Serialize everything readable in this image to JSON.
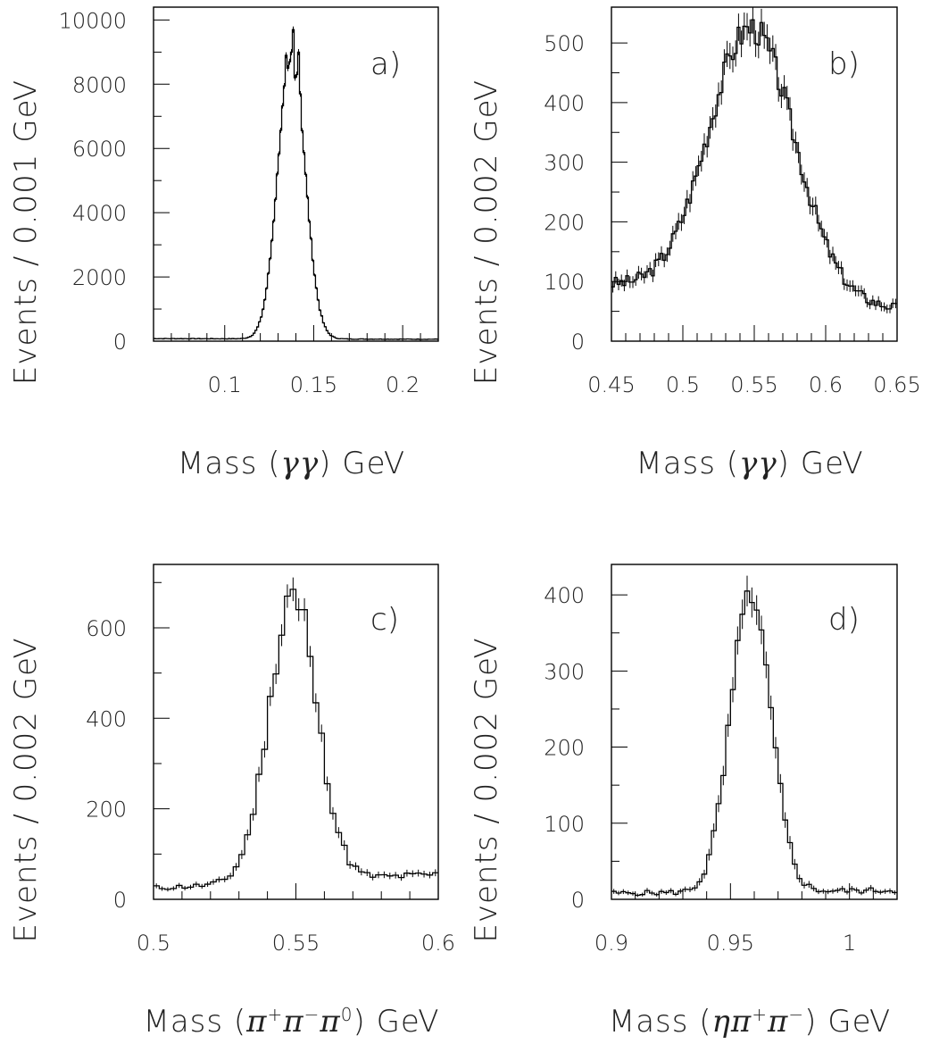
{
  "chart_data": [
    {
      "id": "a",
      "type": "histogram",
      "panel_label": "a)",
      "xlabel_html": "Mass (<tspan font-style='italic' font-family='DejaVu Serif'>γγ</tspan>) GeV",
      "xlabel": "Mass (γγ) GeV",
      "ylabel": "Events / 0.001 GeV",
      "xlim": [
        0.06,
        0.22
      ],
      "ylim": [
        0,
        10400
      ],
      "xticks": [
        0.1,
        0.15,
        0.2
      ],
      "xtick_labels": [
        "0.1",
        "0.15",
        "0.2"
      ],
      "xminor": [
        0.07,
        0.08,
        0.09,
        0.11,
        0.12,
        0.13,
        0.14,
        0.16,
        0.17,
        0.18,
        0.19,
        0.21
      ],
      "yticks": [
        0,
        2000,
        4000,
        6000,
        8000,
        10000
      ],
      "ytick_labels": [
        "0",
        "2000",
        "4000",
        "6000",
        "8000",
        "10000"
      ],
      "yminor": [
        1000,
        3000,
        5000,
        7000,
        9000
      ],
      "bin_width": 0.001,
      "shape": {
        "mu": 0.1375,
        "sigma": 0.0075,
        "amp": 9000,
        "bkg": [
          0.06,
          80,
          0.22,
          60
        ]
      },
      "bump_seed": 7,
      "peak_values": [
        {
          "x": 0.134,
          "y": 8900
        },
        {
          "x": 0.135,
          "y": 8500
        },
        {
          "x": 0.136,
          "y": 8700
        },
        {
          "x": 0.137,
          "y": 9000
        },
        {
          "x": 0.138,
          "y": 9700
        },
        {
          "x": 0.139,
          "y": 8200
        },
        {
          "x": 0.14,
          "y": 8300
        },
        {
          "x": 0.141,
          "y": 9000
        },
        {
          "x": 0.142,
          "y": 7700
        }
      ]
    },
    {
      "id": "b",
      "type": "histogram",
      "panel_label": "b)",
      "xlabel_html": "Mass (<tspan font-style='italic' font-family='DejaVu Serif'>γγ</tspan>) GeV",
      "xlabel": "Mass (γγ) GeV",
      "ylabel": "Events / 0.002 GeV",
      "xlim": [
        0.45,
        0.65
      ],
      "ylim": [
        0,
        560
      ],
      "xticks": [
        0.45,
        0.5,
        0.55,
        0.6,
        0.65
      ],
      "xtick_labels": [
        "0.45",
        "0.5",
        "0.55",
        "0.6",
        "0.65"
      ],
      "xminor": [
        0.46,
        0.47,
        0.48,
        0.49,
        0.51,
        0.52,
        0.53,
        0.54,
        0.56,
        0.57,
        0.58,
        0.59,
        0.61,
        0.62,
        0.63,
        0.64
      ],
      "yticks": [
        0,
        100,
        200,
        300,
        400,
        500
      ],
      "ytick_labels": [
        "0",
        "100",
        "200",
        "300",
        "400",
        "500"
      ],
      "yminor": [
        50,
        150,
        250,
        350,
        450
      ],
      "bin_width": 0.002,
      "shape": {
        "mu": 0.548,
        "sigma": 0.03,
        "amp": 450,
        "bkg": [
          0.45,
          95,
          0.65,
          55
        ]
      },
      "bump_seed": 3,
      "peak_values": []
    },
    {
      "id": "c",
      "type": "histogram",
      "panel_label": "c)",
      "xlabel_html": "Mass (<tspan font-style='italic' font-family='DejaVu Serif'>π</tspan><tspan font-size='20' baseline-shift='super'>+</tspan><tspan font-style='italic' font-family='DejaVu Serif'>π</tspan><tspan font-size='20' baseline-shift='super'>−</tspan><tspan font-style='italic' font-family='DejaVu Serif'>π</tspan><tspan font-size='20' baseline-shift='super'>0</tspan>) GeV",
      "xlabel": "Mass (π+π−π0) GeV",
      "ylabel": "Events / 0.002 GeV",
      "xlim": [
        0.5,
        0.6
      ],
      "ylim": [
        0,
        740
      ],
      "xticks": [
        0.5,
        0.55,
        0.6
      ],
      "xtick_labels": [
        "0.5",
        "0.55",
        "0.6"
      ],
      "xminor": [
        0.51,
        0.52,
        0.53,
        0.54,
        0.56,
        0.57,
        0.58,
        0.59
      ],
      "yticks": [
        0,
        200,
        400,
        600
      ],
      "ytick_labels": [
        "0",
        "200",
        "400",
        "600"
      ],
      "yminor": [
        100,
        300,
        500,
        700
      ],
      "bin_width": 0.002,
      "shape": {
        "mu": 0.549,
        "sigma": 0.0085,
        "amp": 620,
        "bkg": [
          0.5,
          25,
          0.6,
          55
        ]
      },
      "bump_seed": 11,
      "peak_values": [
        {
          "x": 0.546,
          "y": 670
        },
        {
          "x": 0.548,
          "y": 685
        },
        {
          "x": 0.55,
          "y": 640
        },
        {
          "x": 0.552,
          "y": 640
        }
      ]
    },
    {
      "id": "d",
      "type": "histogram",
      "panel_label": "d)",
      "xlabel_html": "Mass (<tspan font-style='italic' font-family='DejaVu Serif'>ηπ</tspan><tspan font-size='20' baseline-shift='super'>+</tspan><tspan font-style='italic' font-family='DejaVu Serif'>π</tspan><tspan font-size='20' baseline-shift='super'>−</tspan>) GeV",
      "xlabel": "Mass (ηπ+π−) GeV",
      "ylabel": "Events / 0.002 GeV",
      "xlim": [
        0.9,
        1.02
      ],
      "ylim": [
        0,
        440
      ],
      "xticks": [
        0.9,
        0.95,
        1.0
      ],
      "xtick_labels": [
        "0.9",
        "0.95",
        "1"
      ],
      "xminor": [
        0.91,
        0.92,
        0.93,
        0.94,
        0.96,
        0.97,
        0.98,
        0.99,
        1.01
      ],
      "yticks": [
        0,
        100,
        200,
        300,
        400
      ],
      "ytick_labels": [
        "0",
        "100",
        "200",
        "300",
        "400"
      ],
      "yminor": [
        50,
        150,
        250,
        350
      ],
      "bin_width": 0.002,
      "shape": {
        "mu": 0.9585,
        "sigma": 0.0085,
        "amp": 385,
        "bkg": [
          0.9,
          8,
          1.02,
          12
        ]
      },
      "bump_seed": 5,
      "peak_values": [
        {
          "x": 0.956,
          "y": 405
        },
        {
          "x": 0.958,
          "y": 390
        },
        {
          "x": 0.96,
          "y": 380
        }
      ]
    }
  ]
}
